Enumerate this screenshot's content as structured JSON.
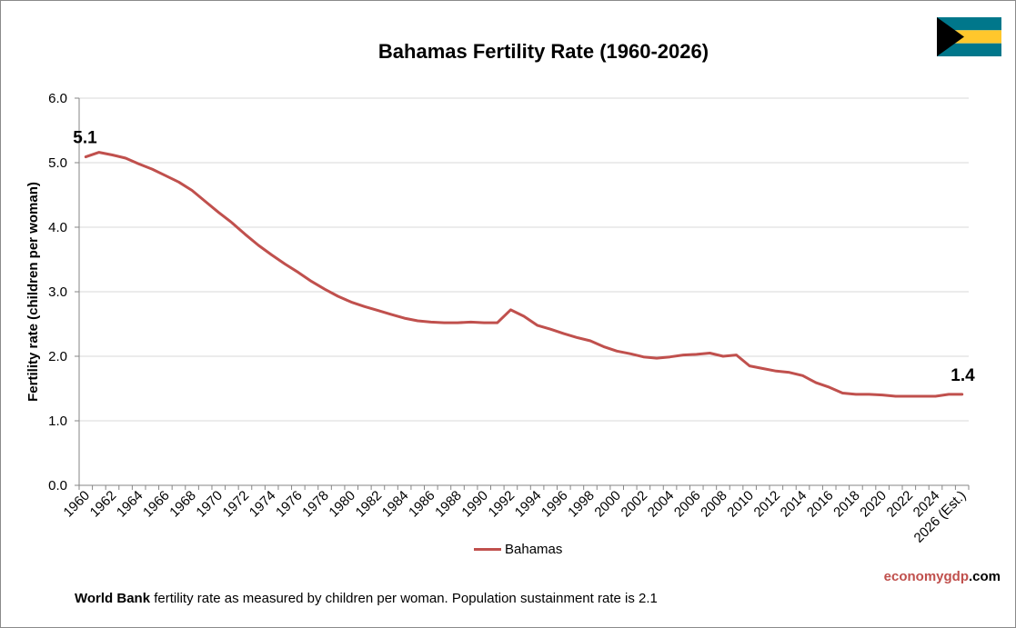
{
  "chart_data": {
    "type": "line",
    "title": "Bahamas Fertility Rate (1960-2026)",
    "xlabel": "",
    "ylabel": "Fertility rate (children per woman)",
    "ylim": [
      0,
      6
    ],
    "yticks": [
      "0.0",
      "1.0",
      "2.0",
      "3.0",
      "4.0",
      "5.0",
      "6.0"
    ],
    "grid": true,
    "legend_position": "bottom",
    "categories": [
      "1960",
      "1961",
      "1962",
      "1963",
      "1964",
      "1965",
      "1966",
      "1967",
      "1968",
      "1969",
      "1970",
      "1971",
      "1972",
      "1973",
      "1974",
      "1975",
      "1976",
      "1977",
      "1978",
      "1979",
      "1980",
      "1981",
      "1982",
      "1983",
      "1984",
      "1985",
      "1986",
      "1987",
      "1988",
      "1989",
      "1990",
      "1991",
      "1992",
      "1993",
      "1994",
      "1995",
      "1996",
      "1997",
      "1998",
      "1999",
      "2000",
      "2001",
      "2002",
      "2003",
      "2004",
      "2005",
      "2006",
      "2007",
      "2008",
      "2009",
      "2010",
      "2011",
      "2012",
      "2013",
      "2014",
      "2015",
      "2016",
      "2017",
      "2018",
      "2019",
      "2020",
      "2021",
      "2022",
      "2023",
      "2024",
      "2025",
      "2026 (Est.)"
    ],
    "tick_labels": [
      "1960",
      "1962",
      "1964",
      "1966",
      "1968",
      "1970",
      "1972",
      "1974",
      "1976",
      "1978",
      "1980",
      "1982",
      "1984",
      "1986",
      "1988",
      "1990",
      "1992",
      "1994",
      "1996",
      "1998",
      "2000",
      "2002",
      "2004",
      "2006",
      "2008",
      "2010",
      "2012",
      "2014",
      "2016",
      "2018",
      "2020",
      "2022",
      "2024",
      "2026 (Est.)"
    ],
    "series": [
      {
        "name": "Bahamas",
        "color": "#c0504d",
        "values": [
          5.09,
          5.16,
          5.12,
          5.07,
          4.98,
          4.9,
          4.8,
          4.7,
          4.57,
          4.4,
          4.23,
          4.07,
          3.89,
          3.72,
          3.57,
          3.43,
          3.3,
          3.16,
          3.04,
          2.93,
          2.84,
          2.77,
          2.71,
          2.65,
          2.59,
          2.55,
          2.53,
          2.52,
          2.52,
          2.53,
          2.52,
          2.52,
          2.72,
          2.62,
          2.48,
          2.42,
          2.35,
          2.29,
          2.24,
          2.15,
          2.08,
          2.04,
          1.99,
          1.97,
          1.99,
          2.02,
          2.03,
          2.05,
          2.0,
          2.02,
          1.85,
          1.81,
          1.77,
          1.75,
          1.7,
          1.59,
          1.52,
          1.43,
          1.41,
          1.41,
          1.4,
          1.38,
          1.38,
          1.38,
          1.38,
          1.41,
          1.41
        ]
      }
    ],
    "annotations": [
      {
        "label": "5.1",
        "category": "1960"
      },
      {
        "label": "1.4",
        "category": "2026 (Est.)"
      }
    ]
  },
  "legend": {
    "label": "Bahamas"
  },
  "brand": {
    "part1": "economygdp",
    "part2": ".com"
  },
  "footnote": {
    "bold": "World Bank",
    "text": " fertility rate as measured by children per woman.  Population sustainment rate is 2.1"
  },
  "flag": {
    "name": "Bahamas",
    "colors": {
      "aquamarine": "#00778b",
      "gold": "#ffc72c",
      "black": "#000000"
    }
  }
}
